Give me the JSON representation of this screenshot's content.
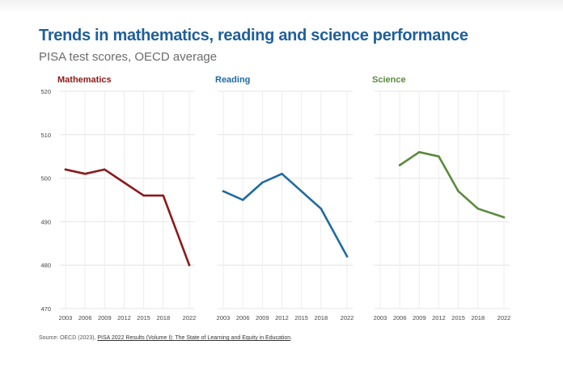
{
  "title": "Trends in mathematics, reading and science performance",
  "subtitle": "PISA test scores, OECD average",
  "source": {
    "prefix": "Source: OECD (2023), ",
    "link": "PISA 2022 Results (Volume I): The State of Learning and Equity in Education",
    "suffix": "."
  },
  "chart_data": {
    "type": "line",
    "x_ticks": [
      2003,
      2006,
      2009,
      2012,
      2015,
      2018,
      2022
    ],
    "ylim": [
      470,
      520
    ],
    "y_ticks": [
      470,
      480,
      490,
      500,
      510,
      520
    ],
    "grid": true,
    "panels": [
      {
        "name": "Mathematics",
        "color": "#8b1a1a",
        "x": [
          2003,
          2006,
          2009,
          2012,
          2015,
          2018,
          2022
        ],
        "y": [
          502,
          501,
          502,
          499,
          496,
          496,
          480
        ]
      },
      {
        "name": "Reading",
        "color": "#1f6aa0",
        "x": [
          2003,
          2006,
          2009,
          2012,
          2015,
          2018,
          2022
        ],
        "y": [
          497,
          495,
          499,
          501,
          497,
          493,
          482
        ]
      },
      {
        "name": "Science",
        "color": "#5a8a3c",
        "x": [
          2006,
          2009,
          2012,
          2015,
          2018,
          2022
        ],
        "y": [
          503,
          506,
          505,
          497,
          493,
          491
        ]
      }
    ]
  }
}
